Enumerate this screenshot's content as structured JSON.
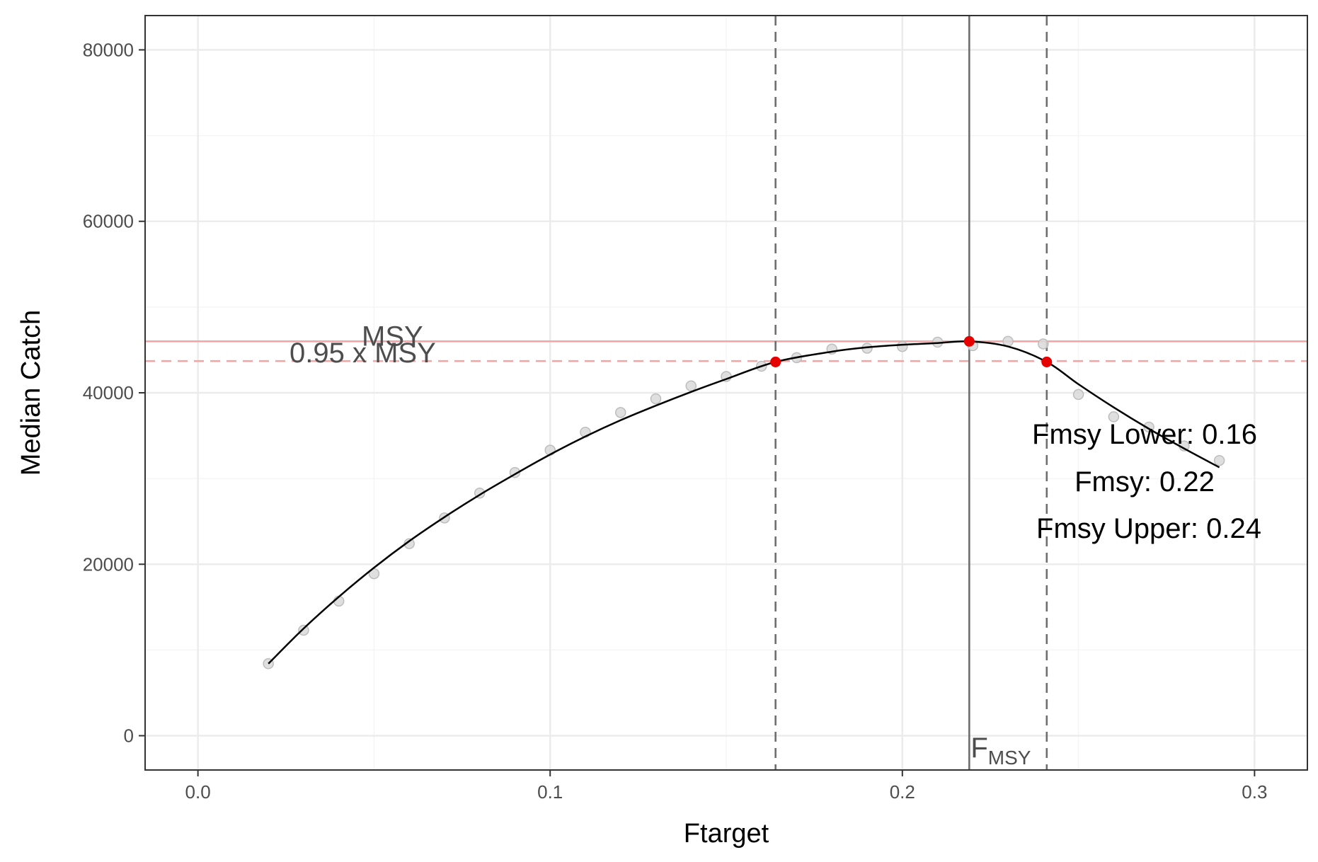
{
  "chart_data": {
    "type": "scatter",
    "xlabel": "Ftarget",
    "ylabel": "Median Catch",
    "xlim": [
      -0.015,
      0.315
    ],
    "ylim": [
      -4000,
      84000
    ],
    "x_ticks": [
      0.0,
      0.1,
      0.2,
      0.3
    ],
    "x_tick_labels": [
      "0.0",
      "0.1",
      "0.2",
      "0.3"
    ],
    "y_ticks": [
      0,
      20000,
      40000,
      60000,
      80000
    ],
    "y_tick_labels": [
      "0",
      "20000",
      "40000",
      "60000",
      "80000"
    ],
    "grid": true,
    "series": [
      {
        "type": "scatter",
        "x": [
          0.02,
          0.03,
          0.04,
          0.05,
          0.06,
          0.07,
          0.08,
          0.09,
          0.1,
          0.11,
          0.12,
          0.13,
          0.14,
          0.15,
          0.16,
          0.17,
          0.18,
          0.19,
          0.2,
          0.21,
          0.22,
          0.23,
          0.24,
          0.25,
          0.26,
          0.27,
          0.28,
          0.29
        ],
        "y": [
          8400,
          12300,
          15700,
          18900,
          22400,
          25400,
          28300,
          30700,
          33300,
          35400,
          37700,
          39300,
          40800,
          41900,
          43100,
          44100,
          45100,
          45200,
          45400,
          45900,
          45500,
          46000,
          45700,
          39800,
          37200,
          36000,
          33800,
          32100
        ]
      },
      {
        "type": "line",
        "x": [
          0.02,
          0.03,
          0.04,
          0.05,
          0.06,
          0.07,
          0.08,
          0.09,
          0.1,
          0.11,
          0.12,
          0.13,
          0.14,
          0.15,
          0.164,
          0.18,
          0.19,
          0.2,
          0.21,
          0.219,
          0.23,
          0.241,
          0.25,
          0.26,
          0.27,
          0.28,
          0.29
        ],
        "y": [
          8400,
          12500,
          16200,
          19600,
          22700,
          25500,
          28100,
          30500,
          32800,
          34900,
          36800,
          38500,
          40100,
          41600,
          43600,
          44800,
          45300,
          45600,
          45800,
          46000,
          45400,
          43600,
          41000,
          38300,
          35800,
          33500,
          31300
        ]
      }
    ],
    "reference_lines": {
      "msy": 46000,
      "msy_95": 43700,
      "fmsy": 0.219,
      "fmsy_lower": 0.164,
      "fmsy_upper": 0.241
    },
    "highlight_points": [
      {
        "x": 0.164,
        "y": 43600
      },
      {
        "x": 0.219,
        "y": 46000
      },
      {
        "x": 0.241,
        "y": 43600
      }
    ],
    "annotations": {
      "msy_label": "MSY",
      "msy95_label": "0.95 x MSY",
      "fmsy_axis_label_main": "F",
      "fmsy_axis_label_sub": "MSY",
      "fmsy_lower_text": "Fmsy Lower: 0.16",
      "fmsy_text": "Fmsy: 0.22",
      "fmsy_upper_text": "Fmsy Upper: 0.24"
    },
    "colors": {
      "points": "#bdbdbd",
      "curve": "#000000",
      "msy_line": "#f4a6a6",
      "f_lines": "#6e6e6e",
      "highlight": "#e60000",
      "grid_major": "#ebebeb",
      "grid_minor": "#f4f4f4",
      "panel_border": "#333333"
    }
  }
}
